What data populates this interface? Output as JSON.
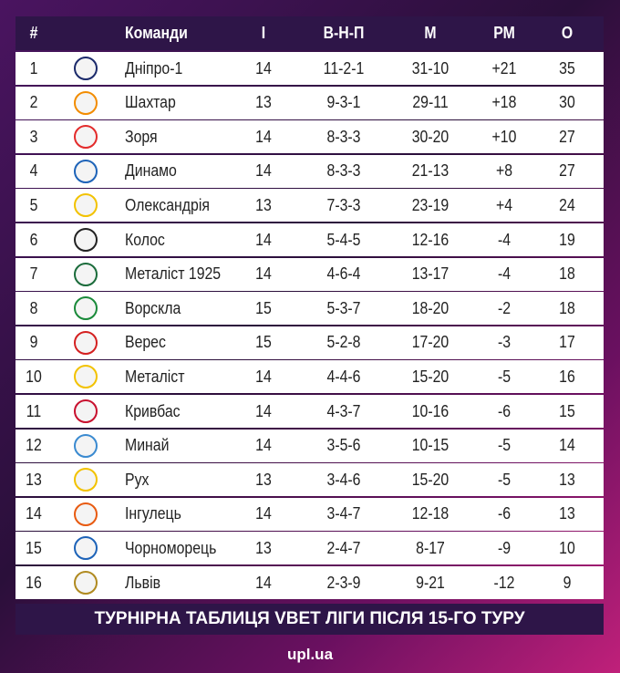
{
  "table": {
    "header": [
      "#",
      "Команди",
      "І",
      "В-Н-П",
      "М",
      "РМ",
      "О"
    ],
    "rows": [
      [
        "1",
        "Дніпро-1",
        "14",
        "11-2-1",
        "31-10",
        "+21",
        "35"
      ],
      [
        "2",
        "Шахтар",
        "13",
        "9-3-1",
        "29-11",
        "+18",
        "30"
      ],
      [
        "3",
        "Зоря",
        "14",
        "8-3-3",
        "30-20",
        "+10",
        "27"
      ],
      [
        "4",
        "Динамо",
        "14",
        "8-3-3",
        "21-13",
        "+8",
        "27"
      ],
      [
        "5",
        "Олександрія",
        "13",
        "7-3-3",
        "23-19",
        "+4",
        "24"
      ],
      [
        "6",
        "Колос",
        "14",
        "5-4-5",
        "12-16",
        "-4",
        "19"
      ],
      [
        "7",
        "Металіст 1925",
        "14",
        "4-6-4",
        "13-17",
        "-4",
        "18"
      ],
      [
        "8",
        "Ворскла",
        "15",
        "5-3-7",
        "18-20",
        "-2",
        "18"
      ],
      [
        "9",
        "Верес",
        "15",
        "5-2-8",
        "17-20",
        "-3",
        "17"
      ],
      [
        "10",
        "Металіст",
        "14",
        "4-4-6",
        "15-20",
        "-5",
        "16"
      ],
      [
        "11",
        "Кривбас",
        "14",
        "4-3-7",
        "10-16",
        "-6",
        "15"
      ],
      [
        "12",
        "Минай",
        "14",
        "3-5-6",
        "10-15",
        "-5",
        "14"
      ],
      [
        "13",
        "Рух",
        "13",
        "3-4-6",
        "15-20",
        "-5",
        "13"
      ],
      [
        "14",
        "Інгулець",
        "14",
        "3-4-7",
        "12-18",
        "-6",
        "13"
      ],
      [
        "15",
        "Чорноморець",
        "13",
        "2-4-7",
        "8-17",
        "-9",
        "10"
      ],
      [
        "16",
        "Львів",
        "14",
        "2-3-9",
        "9-21",
        "-12",
        "9"
      ]
    ]
  },
  "footer": {
    "title": "ТУРНІРНА ТАБЛИЦЯ VBET ЛІГИ ПІСЛЯ 15-ГО ТУРУ",
    "brand": "upl.ua"
  }
}
